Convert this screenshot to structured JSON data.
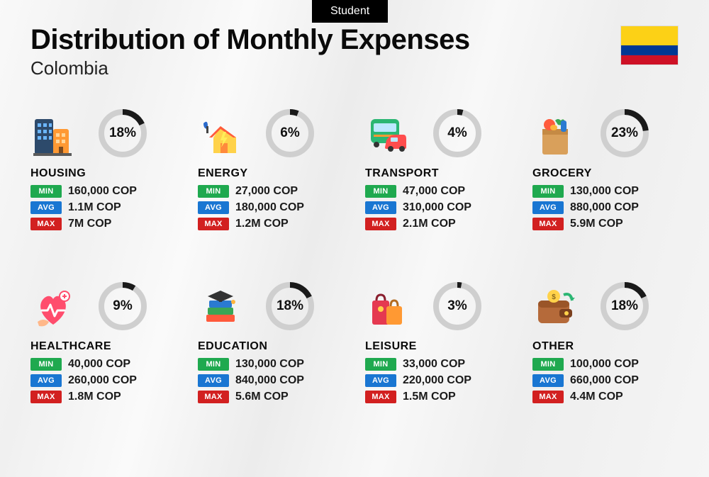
{
  "badge": "Student",
  "title": "Distribution of Monthly Expenses",
  "country": "Colombia",
  "flag_colors": {
    "top": "#fcd116",
    "mid": "#003893",
    "bot": "#ce1126"
  },
  "donut": {
    "track_color": "#cfcfcf",
    "progress_color": "#1a1a1a",
    "stroke_width": 8,
    "radius": 30
  },
  "tags": {
    "min": {
      "label": "MIN",
      "color": "#1fa94f"
    },
    "avg": {
      "label": "AVG",
      "color": "#1976d2"
    },
    "max": {
      "label": "MAX",
      "color": "#d22020"
    }
  },
  "categories": [
    {
      "key": "housing",
      "name": "HOUSING",
      "pct": 18,
      "min": "160,000 COP",
      "avg": "1.1M COP",
      "max": "7M COP",
      "icon": "buildings-icon"
    },
    {
      "key": "energy",
      "name": "ENERGY",
      "pct": 6,
      "min": "27,000 COP",
      "avg": "180,000 COP",
      "max": "1.2M COP",
      "icon": "energy-house-icon"
    },
    {
      "key": "transport",
      "name": "TRANSPORT",
      "pct": 4,
      "min": "47,000 COP",
      "avg": "310,000 COP",
      "max": "2.1M COP",
      "icon": "bus-car-icon"
    },
    {
      "key": "grocery",
      "name": "GROCERY",
      "pct": 23,
      "min": "130,000 COP",
      "avg": "880,000 COP",
      "max": "5.9M COP",
      "icon": "grocery-bag-icon"
    },
    {
      "key": "healthcare",
      "name": "HEALTHCARE",
      "pct": 9,
      "min": "40,000 COP",
      "avg": "260,000 COP",
      "max": "1.8M COP",
      "icon": "healthcare-icon"
    },
    {
      "key": "education",
      "name": "EDUCATION",
      "pct": 18,
      "min": "130,000 COP",
      "avg": "840,000 COP",
      "max": "5.6M COP",
      "icon": "education-icon"
    },
    {
      "key": "leisure",
      "name": "LEISURE",
      "pct": 3,
      "min": "33,000 COP",
      "avg": "220,000 COP",
      "max": "1.5M COP",
      "icon": "shopping-bags-icon"
    },
    {
      "key": "other",
      "name": "OTHER",
      "pct": 18,
      "min": "100,000 COP",
      "avg": "660,000 COP",
      "max": "4.4M COP",
      "icon": "wallet-icon"
    }
  ]
}
